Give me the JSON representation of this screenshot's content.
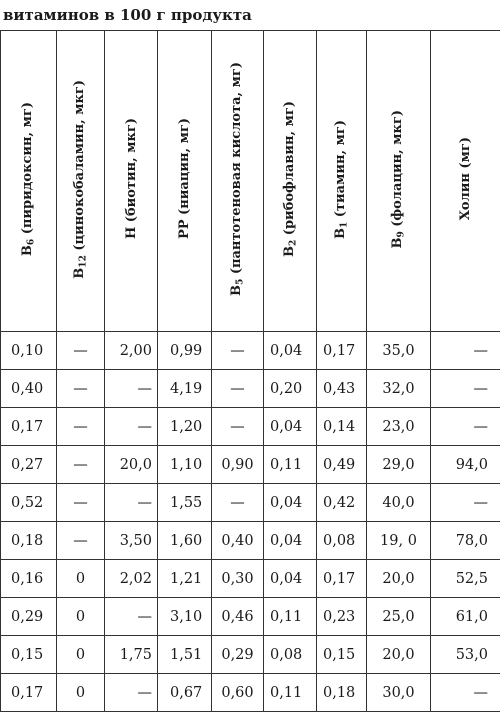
{
  "caption": "витаминов в 100 г продукта",
  "headers": [
    {
      "base": "B",
      "sub": "6",
      "rest": " (пиридоксин, мг)"
    },
    {
      "base": "B",
      "sub": "12",
      "rest": " (цинокобаламин, мкг)"
    },
    {
      "base": "H",
      "sub": "",
      "rest": " (биотин, мкг)"
    },
    {
      "base": "PP",
      "sub": "",
      "rest": " (ниацин, мг)"
    },
    {
      "base": "B",
      "sub": "5",
      "rest": " (пантотеновая кислота, мг)"
    },
    {
      "base": "B",
      "sub": "2",
      "rest": " (рибофлавин, мг)"
    },
    {
      "base": "B",
      "sub": "1",
      "rest": " (тиамин, мг)"
    },
    {
      "base": "B",
      "sub": "9",
      "rest": " (фолацин, мкг)"
    },
    {
      "base": "Холин",
      "sub": "",
      "rest": " (мг)"
    }
  ],
  "rows": [
    [
      "0,10",
      "—",
      "2,00",
      "0,99",
      "—",
      "0,04",
      "0,17",
      "35,0",
      "—"
    ],
    [
      "0,40",
      "—",
      "—",
      "4,19",
      "—",
      "0,20",
      "0,43",
      "32,0",
      "—"
    ],
    [
      "0,17",
      "—",
      "—",
      "1,20",
      "—",
      "0,04",
      "0,14",
      "23,0",
      "—"
    ],
    [
      "0,27",
      "—",
      "20,0",
      "1,10",
      "0,90",
      "0,11",
      "0,49",
      "29,0",
      "94,0"
    ],
    [
      "0,52",
      "—",
      "—",
      "1,55",
      "—",
      "0,04",
      "0,42",
      "40,0",
      "—"
    ],
    [
      "0,18",
      "—",
      "3,50",
      "1,60",
      "0,40",
      "0,04",
      "0,08",
      "19, 0",
      "78,0"
    ],
    [
      "0,16",
      "0",
      "2,02",
      "1,21",
      "0,30",
      "0,04",
      "0,17",
      "20,0",
      "52,5"
    ],
    [
      "0,29",
      "0",
      "—",
      "3,10",
      "0,46",
      "0,11",
      "0,23",
      "25,0",
      "61,0"
    ],
    [
      "0,15",
      "0",
      "1,75",
      "1,51",
      "0,29",
      "0,08",
      "0,15",
      "20,0",
      "53,0"
    ],
    [
      "0,17",
      "0",
      "—",
      "0,67",
      "0,60",
      "0,11",
      "0,18",
      "30,0",
      "—"
    ]
  ]
}
